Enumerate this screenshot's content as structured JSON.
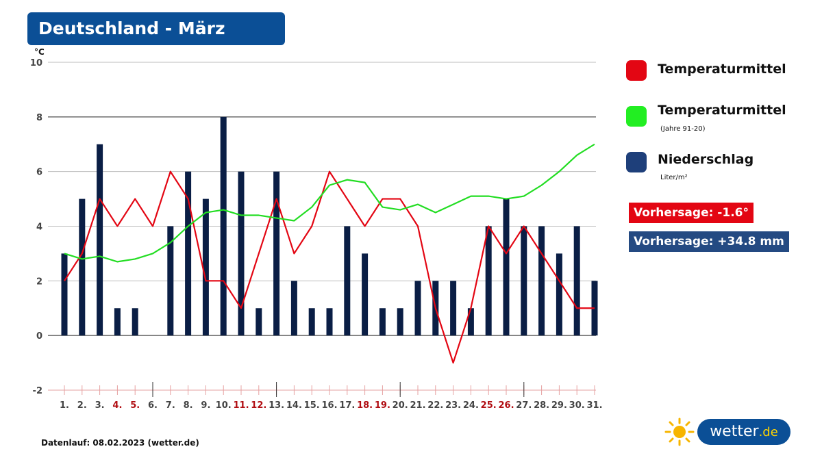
{
  "title": "Deutschland - März",
  "chart_data": {
    "type": "bar",
    "y_unit": "°C",
    "ylim": [
      -2,
      10
    ],
    "y_ticks": [
      -2,
      0,
      2,
      4,
      6,
      8,
      10
    ],
    "grid": true,
    "categories": [
      "1.",
      "2.",
      "3.",
      "4.",
      "5.",
      "6.",
      "7.",
      "8.",
      "9.",
      "10.",
      "11.",
      "12.",
      "13.",
      "14.",
      "15.",
      "16.",
      "17.",
      "18.",
      "19.",
      "20.",
      "21.",
      "22.",
      "23.",
      "24.",
      "25.",
      "26.",
      "27.",
      "28.",
      "29.",
      "30.",
      "31."
    ],
    "weekend_categories": [
      "4.",
      "5.",
      "11.",
      "12.",
      "18.",
      "19.",
      "25.",
      "26."
    ],
    "series": [
      {
        "name": "Temperaturmittel",
        "type": "line",
        "color": "#e30613",
        "values": [
          2,
          3,
          5,
          4,
          5,
          4,
          6,
          5,
          2,
          2,
          1,
          3,
          5,
          3,
          4,
          6,
          5,
          4,
          5,
          5,
          4,
          1,
          -1,
          1,
          4,
          3,
          4,
          3,
          2,
          1,
          1
        ]
      },
      {
        "name": "Temperaturmittel",
        "type": "line",
        "color": "#22dd22",
        "values": [
          3,
          2.8,
          2.9,
          2.7,
          2.8,
          3,
          3.4,
          4,
          4.5,
          4.6,
          4.4,
          4.4,
          4.3,
          4.2,
          4.7,
          5.5,
          5.7,
          5.6,
          4.7,
          4.6,
          4.8,
          4.5,
          4.8,
          5.1,
          5.1,
          5,
          5.1,
          5.5,
          6,
          6.6,
          7
        ]
      },
      {
        "name": "Niederschlag",
        "type": "bar",
        "color": "#0a1e45",
        "values": [
          3,
          5,
          7,
          1,
          1,
          0,
          4,
          6,
          5,
          8,
          6,
          1,
          6,
          2,
          1,
          1,
          4,
          3,
          1,
          1,
          2,
          2,
          2,
          1,
          4,
          5,
          4,
          4,
          3,
          4,
          2
        ]
      }
    ]
  },
  "legend": [
    {
      "label": "Temperaturmittel",
      "sub": "",
      "color": "#e30613"
    },
    {
      "label": "Temperaturmittel",
      "sub": "(Jahre 91-20)",
      "color": "#22dd22"
    },
    {
      "label": "Niederschlag",
      "sub": "Liter/m²",
      "color": "#1e3f7a"
    }
  ],
  "forecast_temp": "Vorhersage: -1.6°",
  "forecast_precip": "Vorhersage: +34.8 mm",
  "colors": {
    "title_bg": "#0b4f96",
    "temp_badge": "#e30613",
    "precip_badge": "#244a82",
    "weekend": "#b10d12"
  },
  "footer": "Datenlauf: 08.02.2023 (wetter.de)",
  "logo": {
    "name": "wetter",
    "tld": ".de",
    "icon": "sun-icon"
  }
}
